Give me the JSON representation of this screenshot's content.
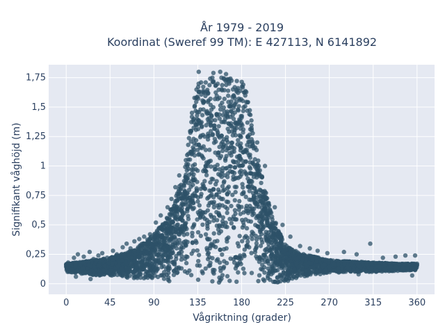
{
  "chart_data": {
    "type": "scatter",
    "title": "År 1979 - 2019",
    "subtitle": "Koordinat (Sweref 99 TM): E 427113, N 6141892",
    "xlabel": "Vågriktning (grader)",
    "ylabel": "Signifikant våghöjd (m)",
    "xlim": [
      -18,
      378
    ],
    "ylim": [
      -0.09,
      1.86
    ],
    "x_ticks": [
      0,
      45,
      90,
      135,
      180,
      225,
      270,
      315,
      360
    ],
    "x_tick_labels": [
      "0",
      "45",
      "90",
      "135",
      "180",
      "225",
      "270",
      "315",
      "360"
    ],
    "y_ticks": [
      0,
      0.25,
      0.5,
      0.75,
      1,
      1.25,
      1.5,
      1.75
    ],
    "y_tick_labels": [
      "0",
      "0,25",
      "0,5",
      "0,75",
      "1",
      "1,25",
      "1,5",
      "1,75"
    ],
    "grid": true,
    "marker_color": "#2e5268",
    "plot_bg": "#e5e9f2",
    "series": [
      {
        "envelope": {
          "x": [
            0,
            20,
            45,
            70,
            90,
            100,
            110,
            120,
            126,
            130,
            135,
            140,
            150,
            160,
            170,
            180,
            186,
            190,
            195,
            200,
            205,
            210,
            215,
            220,
            225,
            230,
            240,
            250,
            260,
            270,
            290,
            315,
            340,
            360
          ],
          "upper": [
            0.17,
            0.19,
            0.22,
            0.29,
            0.42,
            0.52,
            0.68,
            0.92,
            1.25,
            1.55,
            1.73,
            1.76,
            1.76,
            1.76,
            1.75,
            1.73,
            1.62,
            1.4,
            1.15,
            0.95,
            0.78,
            0.62,
            0.52,
            0.42,
            0.34,
            0.3,
            0.26,
            0.24,
            0.22,
            0.2,
            0.19,
            0.18,
            0.17,
            0.17
          ],
          "lower": [
            0.1,
            0.08,
            0.06,
            0.04,
            0.02,
            0.02,
            0.02,
            0.01,
            0.01,
            0.01,
            0.01,
            0.01,
            0.01,
            0.01,
            0.01,
            0.01,
            0.01,
            0.01,
            0.01,
            0.01,
            0.01,
            0.01,
            0.01,
            0.01,
            0.02,
            0.03,
            0.05,
            0.07,
            0.08,
            0.09,
            0.1,
            0.1,
            0.11,
            0.11
          ]
        },
        "outliers": [
          {
            "x": 2,
            "y": 0.18
          },
          {
            "x": 8,
            "y": 0.22
          },
          {
            "x": 12,
            "y": 0.25
          },
          {
            "x": 18,
            "y": 0.23
          },
          {
            "x": 24,
            "y": 0.27
          },
          {
            "x": 28,
            "y": 0.21
          },
          {
            "x": 33,
            "y": 0.24
          },
          {
            "x": 37,
            "y": 0.26
          },
          {
            "x": 42,
            "y": 0.22
          },
          {
            "x": 48,
            "y": 0.28
          },
          {
            "x": 52,
            "y": 0.25
          },
          {
            "x": 58,
            "y": 0.31
          },
          {
            "x": 62,
            "y": 0.34
          },
          {
            "x": 66,
            "y": 0.3
          },
          {
            "x": 70,
            "y": 0.36
          },
          {
            "x": 75,
            "y": 0.38
          },
          {
            "x": 80,
            "y": 0.4
          },
          {
            "x": 86,
            "y": 0.42
          },
          {
            "x": 92,
            "y": 0.52
          },
          {
            "x": 97,
            "y": 0.58
          },
          {
            "x": 104,
            "y": 0.65
          },
          {
            "x": 108,
            "y": 0.72
          },
          {
            "x": 112,
            "y": 0.82
          },
          {
            "x": 116,
            "y": 0.92
          },
          {
            "x": 136,
            "y": 1.8
          },
          {
            "x": 151,
            "y": 1.79
          },
          {
            "x": 158,
            "y": 1.8
          },
          {
            "x": 164,
            "y": 1.78
          },
          {
            "x": 196,
            "y": 1.2
          },
          {
            "x": 204,
            "y": 1.0
          },
          {
            "x": 214,
            "y": 0.65
          },
          {
            "x": 222,
            "y": 0.5
          },
          {
            "x": 230,
            "y": 0.4
          },
          {
            "x": 240,
            "y": 0.32
          },
          {
            "x": 250,
            "y": 0.3
          },
          {
            "x": 258,
            "y": 0.28
          },
          {
            "x": 268,
            "y": 0.26
          },
          {
            "x": 285,
            "y": 0.27
          },
          {
            "x": 298,
            "y": 0.25
          },
          {
            "x": 312,
            "y": 0.34
          },
          {
            "x": 325,
            "y": 0.22
          },
          {
            "x": 338,
            "y": 0.23
          },
          {
            "x": 348,
            "y": 0.24
          },
          {
            "x": 358,
            "y": 0.24
          },
          {
            "x": 10,
            "y": 0.06
          },
          {
            "x": 25,
            "y": 0.04
          },
          {
            "x": 355,
            "y": 0.07
          },
          {
            "x": 300,
            "y": 0.08
          }
        ]
      }
    ]
  }
}
